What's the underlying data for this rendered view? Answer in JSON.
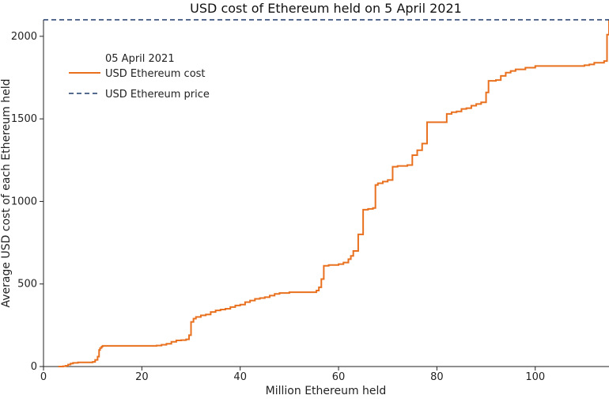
{
  "chart_data": {
    "type": "line",
    "title": "USD cost of Ethereum held on 5 April 2021",
    "xlabel": "Million Ethereum held",
    "ylabel": "Average USD cost of each Ethereum held",
    "xlim": [
      0,
      115
    ],
    "ylim": [
      0,
      2100
    ],
    "xticks": [
      0,
      20,
      40,
      60,
      80,
      100
    ],
    "yticks": [
      0,
      500,
      1000,
      1500,
      2000
    ],
    "grid": false,
    "legend": {
      "title": "05 April 2021",
      "placement": "top-left"
    },
    "colors": {
      "cost": "#E8701E",
      "price": "#1F3A6B"
    },
    "series": [
      {
        "name": "USD Ethereum cost",
        "style": "solid",
        "x": [
          3,
          4,
          4.5,
          5,
          5.5,
          6,
          7,
          8,
          9,
          10,
          10.5,
          11,
          11.3,
          11.5,
          11.8,
          12,
          12.5,
          14,
          16,
          18,
          20,
          22,
          23,
          24,
          25,
          26,
          27,
          28,
          29,
          29.6,
          30,
          30.5,
          31,
          32,
          33,
          34,
          35,
          36,
          37,
          38,
          39,
          40,
          41,
          42,
          43,
          44,
          45,
          46,
          47,
          48,
          50,
          52,
          53,
          54,
          55,
          55.5,
          56,
          56.5,
          57,
          58,
          59,
          60,
          61,
          62,
          62.5,
          63,
          64,
          65,
          66,
          67,
          67.5,
          68,
          69,
          70,
          71,
          72,
          73,
          74,
          75,
          76,
          77,
          78,
          80,
          81,
          82,
          83,
          84,
          85,
          86,
          87,
          88,
          89,
          90,
          90.5,
          91,
          92,
          93,
          94,
          95,
          96,
          98,
          100,
          102,
          104,
          106,
          108,
          110,
          111,
          112,
          113,
          114,
          114.6,
          115
        ],
        "values": [
          0,
          2,
          5,
          12,
          18,
          22,
          25,
          25,
          25,
          28,
          40,
          60,
          100,
          112,
          120,
          125,
          125,
          125,
          125,
          125,
          125,
          125,
          127,
          132,
          138,
          150,
          158,
          160,
          165,
          190,
          270,
          290,
          300,
          310,
          315,
          330,
          340,
          345,
          350,
          360,
          370,
          375,
          390,
          400,
          410,
          415,
          420,
          430,
          440,
          445,
          450,
          450,
          450,
          450,
          450,
          460,
          480,
          530,
          610,
          615,
          615,
          620,
          630,
          650,
          670,
          700,
          800,
          950,
          955,
          960,
          1100,
          1110,
          1120,
          1130,
          1210,
          1215,
          1215,
          1220,
          1280,
          1310,
          1350,
          1480,
          1480,
          1480,
          1530,
          1540,
          1545,
          1560,
          1565,
          1580,
          1590,
          1600,
          1660,
          1730,
          1730,
          1735,
          1760,
          1780,
          1790,
          1800,
          1810,
          1820,
          1820,
          1820,
          1820,
          1820,
          1825,
          1830,
          1840,
          1840,
          1850,
          2010,
          2100
        ]
      },
      {
        "name": "USD Ethereum price",
        "style": "dashed",
        "x": [
          0,
          115
        ],
        "values": [
          2100,
          2100
        ]
      }
    ]
  }
}
